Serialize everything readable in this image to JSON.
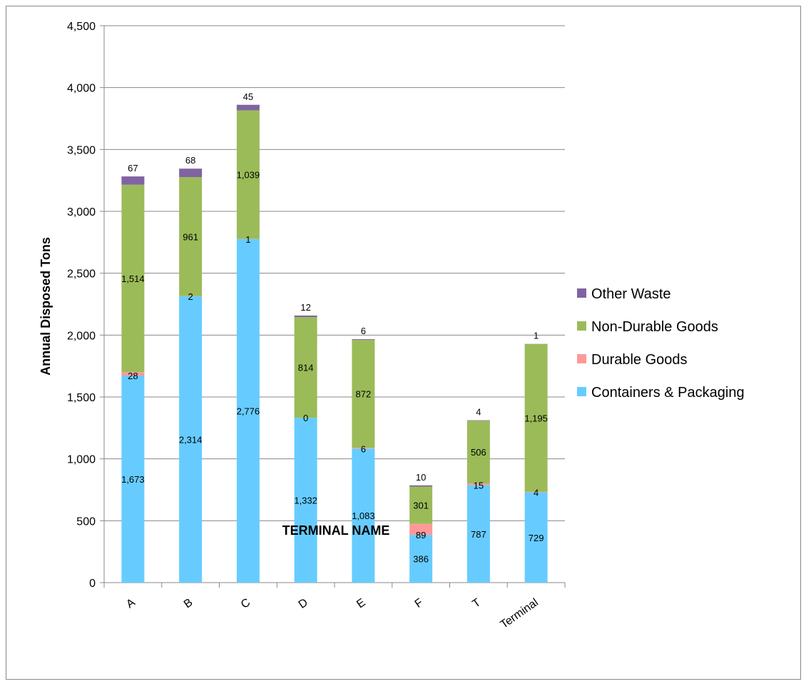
{
  "chart_data": {
    "type": "bar",
    "stacked": true,
    "title": "",
    "xlabel": "TERMINAL NAME",
    "ylabel": "Annual Disposed Tons",
    "ylim": [
      0,
      4500
    ],
    "yticks": [
      0,
      500,
      1000,
      1500,
      2000,
      2500,
      3000,
      3500,
      4000,
      4500
    ],
    "ytick_labels": [
      "0",
      "500",
      "1,000",
      "1,500",
      "2,000",
      "2,500",
      "3,000",
      "3,500",
      "4,000",
      "4,500"
    ],
    "grid": true,
    "legend_position": "right",
    "categories": [
      "A",
      "B",
      "C",
      "D",
      "E",
      "F",
      "T",
      "Terminal"
    ],
    "series": [
      {
        "name": "Containers & Packaging",
        "color": "#66ccff",
        "values": [
          1673,
          2314,
          2776,
          1332,
          1083,
          386,
          787,
          729
        ],
        "labels": [
          "1,673",
          "2,314",
          "2,776",
          "1,332",
          "1,083",
          "386",
          "787",
          "729"
        ]
      },
      {
        "name": "Durable Goods",
        "color": "#ff9999",
        "values": [
          28,
          2,
          1,
          0,
          6,
          89,
          15,
          4
        ],
        "labels": [
          "28",
          "2",
          "1",
          "0",
          "6",
          "89",
          "15",
          "4"
        ]
      },
      {
        "name": "Non-Durable Goods",
        "color": "#9bbb59",
        "values": [
          1514,
          961,
          1039,
          814,
          872,
          301,
          506,
          1195
        ],
        "labels": [
          "1,514",
          "961",
          "1,039",
          "814",
          "872",
          "301",
          "506",
          "1,195"
        ]
      },
      {
        "name": "Other Waste",
        "color": "#8064a2",
        "values": [
          67,
          68,
          45,
          12,
          6,
          10,
          4,
          1
        ],
        "labels": [
          "67",
          "68",
          "45",
          "12",
          "6",
          "10",
          "4",
          "1"
        ]
      }
    ]
  }
}
